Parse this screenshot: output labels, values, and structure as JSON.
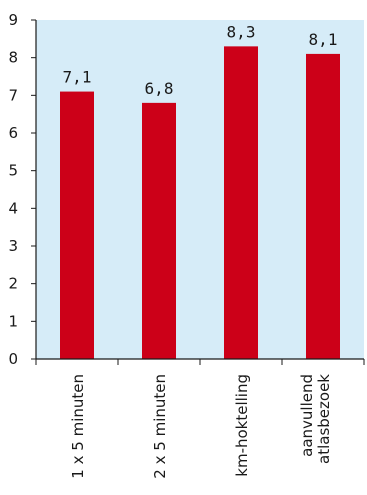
{
  "chart_data": {
    "type": "bar",
    "categories": [
      [
        "1 x 5 minuten"
      ],
      [
        "2 x 5 minuten"
      ],
      [
        "km-hoktelling"
      ],
      [
        "aanvullend",
        "atlasbezoek"
      ]
    ],
    "values": [
      7.1,
      6.8,
      8.3,
      8.1
    ],
    "value_labels": [
      "7,1",
      "6,8",
      "8,3",
      "8,1"
    ],
    "y_ticks": [
      "0",
      "1",
      "2",
      "3",
      "4",
      "5",
      "6",
      "7",
      "8",
      "9"
    ],
    "ylim": [
      0,
      9
    ],
    "grid": false,
    "colors": {
      "bar": "#cc0018",
      "plot_background": "#d6ecf8",
      "axis": "#1a1a1a"
    }
  }
}
